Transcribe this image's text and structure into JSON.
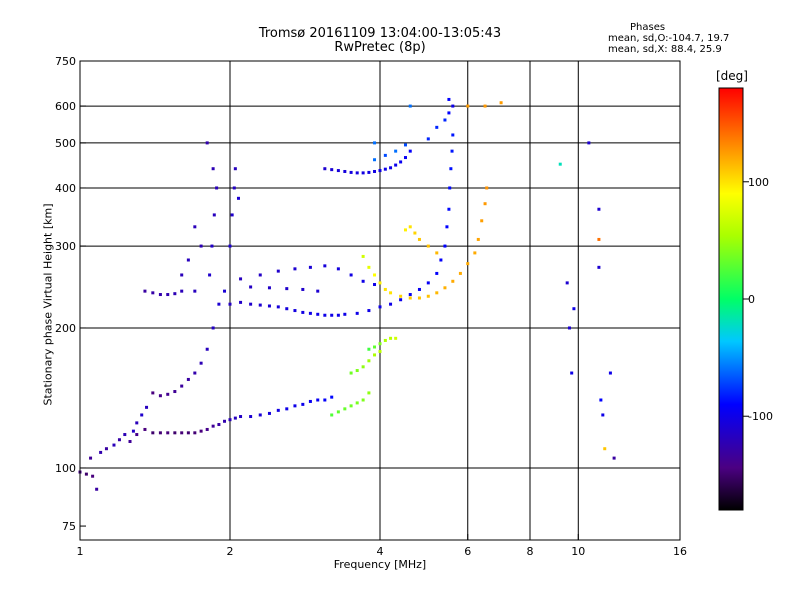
{
  "chart_data": {
    "type": "scatter",
    "title": "Tromsø 20161109 13:04:00-13:05:43",
    "subtitle": "RwPretec (8p)",
    "xlabel": "Frequency [MHz]",
    "ylabel": "Stationary phase Virtual Height [km]",
    "x_scale": "log",
    "y_scale": "log",
    "xlim": [
      1,
      16
    ],
    "ylim": [
      70,
      750
    ],
    "x_ticks": [
      1,
      2,
      4,
      6,
      8,
      10,
      16
    ],
    "x_tick_labels": [
      "1",
      "2",
      "4",
      "6",
      "8",
      "10",
      "16"
    ],
    "y_ticks": [
      75,
      100,
      200,
      300,
      400,
      500,
      600,
      750
    ],
    "y_tick_labels": [
      "75",
      "100",
      "200",
      "300",
      "400",
      "500",
      "600",
      "750"
    ],
    "x_gridlines": [
      2,
      4,
      6,
      8,
      10
    ],
    "y_gridlines": [
      100,
      200,
      300,
      400,
      500,
      600
    ],
    "grid": true,
    "phases_legend": {
      "title": "Phases",
      "o_line": "mean, sd,O:-104.7, 19.7",
      "x_line": "mean, sd,X: 88.4, 25.9"
    },
    "colorbar": {
      "unit": "[deg]",
      "range": [
        -180,
        180
      ],
      "tick_values": [
        100,
        0,
        -100
      ],
      "tick_labels": [
        "100",
        "0",
        "-100"
      ],
      "colormap": "rainbow"
    },
    "series": [
      {
        "values": [
          [
            1.0,
            98,
            -140
          ],
          [
            1.03,
            97,
            -150
          ],
          [
            1.06,
            96,
            -145
          ],
          [
            1.08,
            90,
            -130
          ],
          [
            1.05,
            105,
            -135
          ],
          [
            1.1,
            108,
            -125
          ],
          [
            1.13,
            110,
            -130
          ],
          [
            1.17,
            112,
            -120
          ],
          [
            1.2,
            115,
            -128
          ],
          [
            1.23,
            118,
            -122
          ],
          [
            1.26,
            114,
            -135
          ],
          [
            1.28,
            120,
            -115
          ],
          [
            1.3,
            125,
            -120
          ],
          [
            1.33,
            130,
            -112
          ],
          [
            1.36,
            135,
            -118
          ],
          [
            1.3,
            118,
            -140
          ],
          [
            1.35,
            121,
            -145
          ],
          [
            1.4,
            119,
            -150
          ],
          [
            1.45,
            119,
            -148
          ],
          [
            1.5,
            119,
            -146
          ],
          [
            1.55,
            119,
            -150
          ],
          [
            1.6,
            119,
            -147
          ],
          [
            1.65,
            119,
            -149
          ],
          [
            1.7,
            119,
            -148
          ],
          [
            1.75,
            120,
            -145
          ],
          [
            1.8,
            121,
            -140
          ],
          [
            1.85,
            123,
            -135
          ],
          [
            1.9,
            124,
            -130
          ],
          [
            1.95,
            126,
            -125
          ],
          [
            2.0,
            127,
            -120
          ],
          [
            2.05,
            128,
            -118
          ],
          [
            2.1,
            129,
            -115
          ],
          [
            2.2,
            129,
            -110
          ],
          [
            2.3,
            130,
            -108
          ],
          [
            2.4,
            131,
            -105
          ],
          [
            2.5,
            133,
            -102
          ],
          [
            2.6,
            134,
            -100
          ],
          [
            2.7,
            136,
            -100
          ],
          [
            2.8,
            137,
            -98
          ],
          [
            2.9,
            139,
            -96
          ],
          [
            3.0,
            140,
            -95
          ],
          [
            3.1,
            140,
            -92
          ],
          [
            3.2,
            142,
            -88
          ],
          [
            1.4,
            145,
            -145
          ],
          [
            1.45,
            143,
            -140
          ],
          [
            1.5,
            144,
            -138
          ],
          [
            1.55,
            146,
            -136
          ],
          [
            1.6,
            150,
            -132
          ],
          [
            1.65,
            155,
            -130
          ],
          [
            1.7,
            160,
            -126
          ],
          [
            1.75,
            168,
            -122
          ],
          [
            1.8,
            180,
            -118
          ],
          [
            1.85,
            200,
            -115
          ],
          [
            1.9,
            225,
            -110
          ],
          [
            1.95,
            240,
            -108
          ],
          [
            1.82,
            260,
            -112
          ],
          [
            1.84,
            300,
            -114
          ],
          [
            1.86,
            350,
            -118
          ],
          [
            1.88,
            400,
            -120
          ],
          [
            1.85,
            440,
            -122
          ],
          [
            1.8,
            500,
            -125
          ],
          [
            2.0,
            300,
            -110
          ],
          [
            2.02,
            350,
            -112
          ],
          [
            2.04,
            400,
            -115
          ],
          [
            2.05,
            440,
            -118
          ],
          [
            2.08,
            380,
            -110
          ],
          [
            1.7,
            330,
            -120
          ],
          [
            1.75,
            300,
            -122
          ],
          [
            1.65,
            280,
            -118
          ],
          [
            1.6,
            260,
            -120
          ],
          [
            1.35,
            240,
            -130
          ],
          [
            1.4,
            238,
            -128
          ],
          [
            1.45,
            236,
            -126
          ],
          [
            1.5,
            236,
            -124
          ],
          [
            1.55,
            237,
            -122
          ],
          [
            1.6,
            240,
            -120
          ],
          [
            1.7,
            240,
            -118
          ],
          [
            2.0,
            225,
            -116
          ],
          [
            2.1,
            227,
            -114
          ],
          [
            2.2,
            225,
            -112
          ],
          [
            2.3,
            224,
            -110
          ],
          [
            2.4,
            223,
            -108
          ],
          [
            2.5,
            222,
            -106
          ],
          [
            2.6,
            220,
            -105
          ],
          [
            2.7,
            218,
            -104
          ],
          [
            2.8,
            216,
            -102
          ],
          [
            2.9,
            215,
            -100
          ],
          [
            3.0,
            214,
            -100
          ],
          [
            3.1,
            213,
            -100
          ],
          [
            3.2,
            213,
            -100
          ],
          [
            3.3,
            213,
            -100
          ],
          [
            3.4,
            214,
            -100
          ],
          [
            3.6,
            215,
            -100
          ],
          [
            3.8,
            218,
            -100
          ],
          [
            4.0,
            222,
            -100
          ],
          [
            4.2,
            225,
            -100
          ],
          [
            4.4,
            230,
            -98
          ],
          [
            4.6,
            236,
            -96
          ],
          [
            4.8,
            242,
            -95
          ],
          [
            5.0,
            250,
            -94
          ],
          [
            5.2,
            262,
            -92
          ],
          [
            5.3,
            280,
            -92
          ],
          [
            5.4,
            300,
            -90
          ],
          [
            5.45,
            330,
            -90
          ],
          [
            5.5,
            360,
            -88
          ],
          [
            5.52,
            400,
            -88
          ],
          [
            5.55,
            440,
            -86
          ],
          [
            5.58,
            480,
            -84
          ],
          [
            5.6,
            520,
            -84
          ],
          [
            2.1,
            255,
            -118
          ],
          [
            2.3,
            260,
            -115
          ],
          [
            2.5,
            265,
            -112
          ],
          [
            2.7,
            268,
            -110
          ],
          [
            2.9,
            270,
            -108
          ],
          [
            3.1,
            272,
            -106
          ],
          [
            3.3,
            268,
            -104
          ],
          [
            3.5,
            260,
            -102
          ],
          [
            3.7,
            252,
            -100
          ],
          [
            3.9,
            248,
            -100
          ],
          [
            2.2,
            245,
            -116
          ],
          [
            2.4,
            244,
            -114
          ],
          [
            2.6,
            243,
            -112
          ],
          [
            2.8,
            242,
            -112
          ],
          [
            3.0,
            240,
            -110
          ],
          [
            3.1,
            440,
            -110
          ],
          [
            3.2,
            438,
            -108
          ],
          [
            3.3,
            436,
            -106
          ],
          [
            3.4,
            434,
            -105
          ],
          [
            3.5,
            432,
            -104
          ],
          [
            3.6,
            431,
            -104
          ],
          [
            3.7,
            431,
            -103
          ],
          [
            3.8,
            432,
            -102
          ],
          [
            3.9,
            434,
            -102
          ],
          [
            4.0,
            436,
            -101
          ],
          [
            4.1,
            439,
            -100
          ],
          [
            4.2,
            442,
            -100
          ],
          [
            4.3,
            448,
            -98
          ],
          [
            4.4,
            455,
            -96
          ],
          [
            4.5,
            465,
            -95
          ],
          [
            4.6,
            480,
            -92
          ],
          [
            3.9,
            460,
            -60
          ],
          [
            4.1,
            470,
            -70
          ],
          [
            4.3,
            480,
            -60
          ],
          [
            4.5,
            495,
            -70
          ],
          [
            5.0,
            510,
            -80
          ],
          [
            5.2,
            540,
            -80
          ],
          [
            5.4,
            560,
            -80
          ],
          [
            5.5,
            580,
            -90
          ],
          [
            5.6,
            600,
            -100
          ],
          [
            5.5,
            620,
            -90
          ],
          [
            4.6,
            600,
            -60
          ],
          [
            3.9,
            500,
            -60
          ],
          [
            3.8,
            180,
            20
          ],
          [
            3.9,
            182,
            30
          ],
          [
            4.0,
            185,
            40
          ],
          [
            4.1,
            188,
            55
          ],
          [
            4.2,
            190,
            60
          ],
          [
            4.3,
            190,
            70
          ],
          [
            3.5,
            160,
            35
          ],
          [
            3.6,
            162,
            40
          ],
          [
            3.7,
            165,
            45
          ],
          [
            3.8,
            170,
            50
          ],
          [
            3.9,
            175,
            55
          ],
          [
            4.0,
            178,
            60
          ],
          [
            3.2,
            130,
            25
          ],
          [
            3.3,
            132,
            30
          ],
          [
            3.4,
            134,
            32
          ],
          [
            3.5,
            136,
            35
          ],
          [
            3.6,
            138,
            38
          ],
          [
            3.7,
            140,
            40
          ],
          [
            3.8,
            145,
            45
          ],
          [
            3.7,
            285,
            70
          ],
          [
            3.8,
            270,
            80
          ],
          [
            3.9,
            260,
            90
          ],
          [
            4.0,
            250,
            95
          ],
          [
            4.1,
            242,
            100
          ],
          [
            4.2,
            238,
            100
          ],
          [
            4.4,
            234,
            105
          ],
          [
            4.6,
            232,
            108
          ],
          [
            4.8,
            232,
            110
          ],
          [
            5.0,
            234,
            112
          ],
          [
            5.2,
            238,
            115
          ],
          [
            5.4,
            244,
            118
          ],
          [
            5.6,
            252,
            120
          ],
          [
            5.8,
            262,
            120
          ],
          [
            6.0,
            275,
            120
          ],
          [
            6.2,
            290,
            120
          ],
          [
            6.3,
            310,
            122
          ],
          [
            6.4,
            340,
            124
          ],
          [
            6.5,
            370,
            126
          ],
          [
            6.55,
            400,
            128
          ],
          [
            4.5,
            325,
            95
          ],
          [
            4.6,
            330,
            100
          ],
          [
            4.7,
            320,
            105
          ],
          [
            4.8,
            310,
            110
          ],
          [
            5.0,
            300,
            112
          ],
          [
            5.2,
            290,
            115
          ],
          [
            6.0,
            600,
            125
          ],
          [
            6.5,
            600,
            126
          ],
          [
            7.0,
            610,
            125
          ],
          [
            9.2,
            450,
            -20
          ],
          [
            9.5,
            250,
            -110
          ],
          [
            9.6,
            200,
            -110
          ],
          [
            9.7,
            160,
            -100
          ],
          [
            9.8,
            220,
            -100
          ],
          [
            11.0,
            270,
            -110
          ],
          [
            11.1,
            140,
            -90
          ],
          [
            11.2,
            130,
            -100
          ],
          [
            11.3,
            110,
            110
          ],
          [
            11.8,
            105,
            -130
          ],
          [
            11.0,
            360,
            -110
          ],
          [
            11.0,
            310,
            140
          ],
          [
            11.6,
            160,
            -100
          ],
          [
            10.5,
            500,
            -110
          ]
        ]
      }
    ]
  }
}
